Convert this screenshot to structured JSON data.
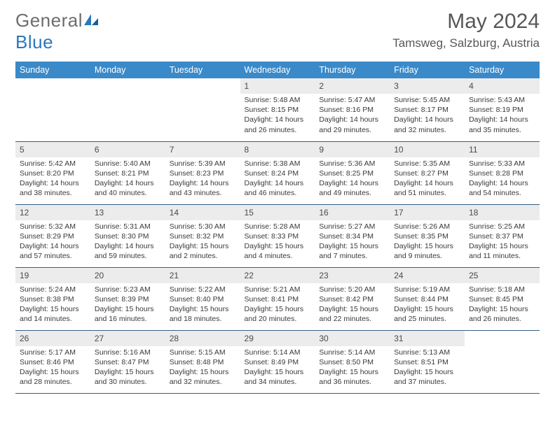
{
  "logo": {
    "general": "General",
    "blue": "Blue"
  },
  "title": "May 2024",
  "location": "Tamsweg, Salzburg, Austria",
  "colors": {
    "header_bg": "#3a8ac9",
    "header_text": "#ffffff",
    "daynum_bg": "#ececec",
    "cell_border": "#355e86",
    "logo_gray": "#6d6d6d",
    "logo_blue": "#2a78bd"
  },
  "weekdays": [
    "Sunday",
    "Monday",
    "Tuesday",
    "Wednesday",
    "Thursday",
    "Friday",
    "Saturday"
  ],
  "weeks": [
    [
      {
        "day": "",
        "sunrise": "",
        "sunset": "",
        "daylight": ""
      },
      {
        "day": "",
        "sunrise": "",
        "sunset": "",
        "daylight": ""
      },
      {
        "day": "",
        "sunrise": "",
        "sunset": "",
        "daylight": ""
      },
      {
        "day": "1",
        "sunrise": "Sunrise: 5:48 AM",
        "sunset": "Sunset: 8:15 PM",
        "daylight": "Daylight: 14 hours and 26 minutes."
      },
      {
        "day": "2",
        "sunrise": "Sunrise: 5:47 AM",
        "sunset": "Sunset: 8:16 PM",
        "daylight": "Daylight: 14 hours and 29 minutes."
      },
      {
        "day": "3",
        "sunrise": "Sunrise: 5:45 AM",
        "sunset": "Sunset: 8:17 PM",
        "daylight": "Daylight: 14 hours and 32 minutes."
      },
      {
        "day": "4",
        "sunrise": "Sunrise: 5:43 AM",
        "sunset": "Sunset: 8:19 PM",
        "daylight": "Daylight: 14 hours and 35 minutes."
      }
    ],
    [
      {
        "day": "5",
        "sunrise": "Sunrise: 5:42 AM",
        "sunset": "Sunset: 8:20 PM",
        "daylight": "Daylight: 14 hours and 38 minutes."
      },
      {
        "day": "6",
        "sunrise": "Sunrise: 5:40 AM",
        "sunset": "Sunset: 8:21 PM",
        "daylight": "Daylight: 14 hours and 40 minutes."
      },
      {
        "day": "7",
        "sunrise": "Sunrise: 5:39 AM",
        "sunset": "Sunset: 8:23 PM",
        "daylight": "Daylight: 14 hours and 43 minutes."
      },
      {
        "day": "8",
        "sunrise": "Sunrise: 5:38 AM",
        "sunset": "Sunset: 8:24 PM",
        "daylight": "Daylight: 14 hours and 46 minutes."
      },
      {
        "day": "9",
        "sunrise": "Sunrise: 5:36 AM",
        "sunset": "Sunset: 8:25 PM",
        "daylight": "Daylight: 14 hours and 49 minutes."
      },
      {
        "day": "10",
        "sunrise": "Sunrise: 5:35 AM",
        "sunset": "Sunset: 8:27 PM",
        "daylight": "Daylight: 14 hours and 51 minutes."
      },
      {
        "day": "11",
        "sunrise": "Sunrise: 5:33 AM",
        "sunset": "Sunset: 8:28 PM",
        "daylight": "Daylight: 14 hours and 54 minutes."
      }
    ],
    [
      {
        "day": "12",
        "sunrise": "Sunrise: 5:32 AM",
        "sunset": "Sunset: 8:29 PM",
        "daylight": "Daylight: 14 hours and 57 minutes."
      },
      {
        "day": "13",
        "sunrise": "Sunrise: 5:31 AM",
        "sunset": "Sunset: 8:30 PM",
        "daylight": "Daylight: 14 hours and 59 minutes."
      },
      {
        "day": "14",
        "sunrise": "Sunrise: 5:30 AM",
        "sunset": "Sunset: 8:32 PM",
        "daylight": "Daylight: 15 hours and 2 minutes."
      },
      {
        "day": "15",
        "sunrise": "Sunrise: 5:28 AM",
        "sunset": "Sunset: 8:33 PM",
        "daylight": "Daylight: 15 hours and 4 minutes."
      },
      {
        "day": "16",
        "sunrise": "Sunrise: 5:27 AM",
        "sunset": "Sunset: 8:34 PM",
        "daylight": "Daylight: 15 hours and 7 minutes."
      },
      {
        "day": "17",
        "sunrise": "Sunrise: 5:26 AM",
        "sunset": "Sunset: 8:35 PM",
        "daylight": "Daylight: 15 hours and 9 minutes."
      },
      {
        "day": "18",
        "sunrise": "Sunrise: 5:25 AM",
        "sunset": "Sunset: 8:37 PM",
        "daylight": "Daylight: 15 hours and 11 minutes."
      }
    ],
    [
      {
        "day": "19",
        "sunrise": "Sunrise: 5:24 AM",
        "sunset": "Sunset: 8:38 PM",
        "daylight": "Daylight: 15 hours and 14 minutes."
      },
      {
        "day": "20",
        "sunrise": "Sunrise: 5:23 AM",
        "sunset": "Sunset: 8:39 PM",
        "daylight": "Daylight: 15 hours and 16 minutes."
      },
      {
        "day": "21",
        "sunrise": "Sunrise: 5:22 AM",
        "sunset": "Sunset: 8:40 PM",
        "daylight": "Daylight: 15 hours and 18 minutes."
      },
      {
        "day": "22",
        "sunrise": "Sunrise: 5:21 AM",
        "sunset": "Sunset: 8:41 PM",
        "daylight": "Daylight: 15 hours and 20 minutes."
      },
      {
        "day": "23",
        "sunrise": "Sunrise: 5:20 AM",
        "sunset": "Sunset: 8:42 PM",
        "daylight": "Daylight: 15 hours and 22 minutes."
      },
      {
        "day": "24",
        "sunrise": "Sunrise: 5:19 AM",
        "sunset": "Sunset: 8:44 PM",
        "daylight": "Daylight: 15 hours and 25 minutes."
      },
      {
        "day": "25",
        "sunrise": "Sunrise: 5:18 AM",
        "sunset": "Sunset: 8:45 PM",
        "daylight": "Daylight: 15 hours and 26 minutes."
      }
    ],
    [
      {
        "day": "26",
        "sunrise": "Sunrise: 5:17 AM",
        "sunset": "Sunset: 8:46 PM",
        "daylight": "Daylight: 15 hours and 28 minutes."
      },
      {
        "day": "27",
        "sunrise": "Sunrise: 5:16 AM",
        "sunset": "Sunset: 8:47 PM",
        "daylight": "Daylight: 15 hours and 30 minutes."
      },
      {
        "day": "28",
        "sunrise": "Sunrise: 5:15 AM",
        "sunset": "Sunset: 8:48 PM",
        "daylight": "Daylight: 15 hours and 32 minutes."
      },
      {
        "day": "29",
        "sunrise": "Sunrise: 5:14 AM",
        "sunset": "Sunset: 8:49 PM",
        "daylight": "Daylight: 15 hours and 34 minutes."
      },
      {
        "day": "30",
        "sunrise": "Sunrise: 5:14 AM",
        "sunset": "Sunset: 8:50 PM",
        "daylight": "Daylight: 15 hours and 36 minutes."
      },
      {
        "day": "31",
        "sunrise": "Sunrise: 5:13 AM",
        "sunset": "Sunset: 8:51 PM",
        "daylight": "Daylight: 15 hours and 37 minutes."
      },
      {
        "day": "",
        "sunrise": "",
        "sunset": "",
        "daylight": ""
      }
    ]
  ]
}
